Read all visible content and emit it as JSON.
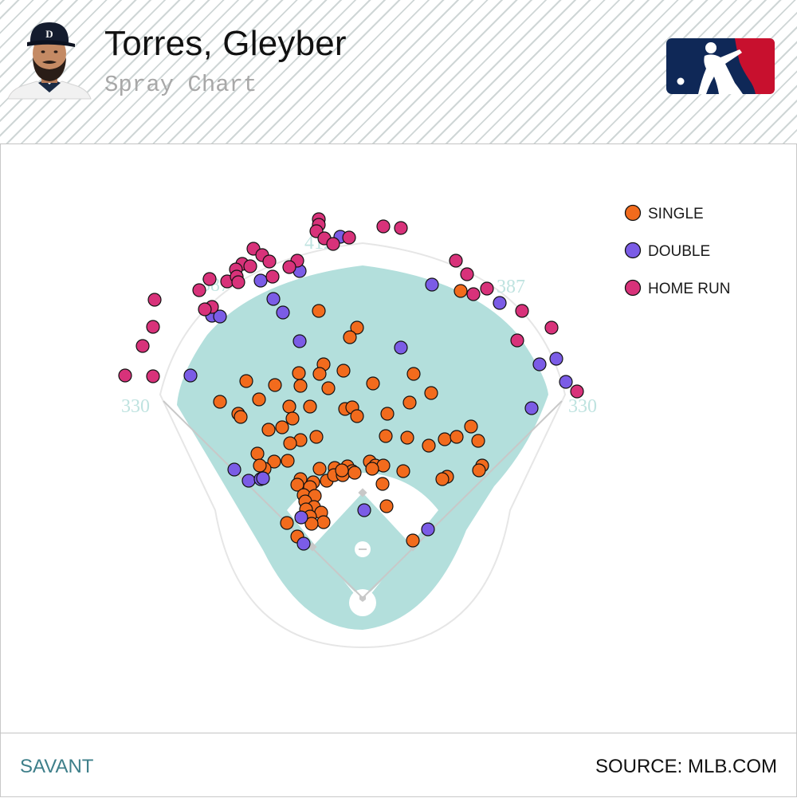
{
  "header": {
    "player_name": "Torres, Gleyber",
    "subtitle": "Spray Chart",
    "logo": "mlb-logo"
  },
  "footer": {
    "brand": "SAVANT",
    "source": "SOURCE: MLB.COM"
  },
  "colors": {
    "single": "#f26b1d",
    "double": "#7b5ce6",
    "home_run": "#d8327a",
    "field": "#b3dfdc",
    "mlb_blue": "#0f2857",
    "mlb_red": "#c8102e"
  },
  "chart_data": {
    "type": "scatter",
    "title": "Spray Chart",
    "xlabel": "",
    "ylabel": "",
    "legend_position": "top-right",
    "fence_distances": [
      "330",
      "387",
      "412",
      "387",
      "330"
    ],
    "legend": [
      {
        "key": "single",
        "label": "SINGLE"
      },
      {
        "key": "double",
        "label": "DOUBLE"
      },
      {
        "key": "home_run",
        "label": "HOME RUN"
      }
    ],
    "series": [
      {
        "key": "single",
        "name": "SINGLE",
        "points": [
          [
            400,
            390
          ],
          [
            448,
            411
          ],
          [
            439,
            423
          ],
          [
            406,
            457
          ],
          [
            375,
            468
          ],
          [
            401,
            469
          ],
          [
            431,
            465
          ],
          [
            519,
            469
          ],
          [
            309,
            478
          ],
          [
            345,
            483
          ],
          [
            377,
            484
          ],
          [
            412,
            487
          ],
          [
            468,
            481
          ],
          [
            541,
            493
          ],
          [
            276,
            504
          ],
          [
            325,
            501
          ],
          [
            363,
            510
          ],
          [
            389,
            510
          ],
          [
            433,
            513
          ],
          [
            442,
            511
          ],
          [
            514,
            505
          ],
          [
            299,
            519
          ],
          [
            302,
            523
          ],
          [
            367,
            525
          ],
          [
            448,
            522
          ],
          [
            486,
            519
          ],
          [
            337,
            539
          ],
          [
            354,
            536
          ],
          [
            591,
            535
          ],
          [
            377,
            552
          ],
          [
            364,
            556
          ],
          [
            397,
            548
          ],
          [
            484,
            547
          ],
          [
            511,
            549
          ],
          [
            538,
            559
          ],
          [
            558,
            551
          ],
          [
            573,
            548
          ],
          [
            600,
            553
          ],
          [
            323,
            569
          ],
          [
            344,
            579
          ],
          [
            361,
            578
          ],
          [
            332,
            588
          ],
          [
            326,
            584
          ],
          [
            401,
            588
          ],
          [
            420,
            587
          ],
          [
            436,
            585
          ],
          [
            442,
            591
          ],
          [
            464,
            579
          ],
          [
            471,
            584
          ],
          [
            481,
            584
          ],
          [
            467,
            588
          ],
          [
            506,
            591
          ],
          [
            605,
            584
          ],
          [
            601,
            590
          ],
          [
            377,
            601
          ],
          [
            393,
            605
          ],
          [
            410,
            603
          ],
          [
            419,
            596
          ],
          [
            430,
            596
          ],
          [
            445,
            593
          ],
          [
            429,
            590
          ],
          [
            480,
            607
          ],
          [
            561,
            598
          ],
          [
            555,
            601
          ],
          [
            373,
            608
          ],
          [
            389,
            611
          ],
          [
            381,
            621
          ],
          [
            395,
            622
          ],
          [
            383,
            629
          ],
          [
            394,
            636
          ],
          [
            384,
            639
          ],
          [
            403,
            643
          ],
          [
            485,
            635
          ],
          [
            389,
            648
          ],
          [
            406,
            655
          ],
          [
            391,
            657
          ],
          [
            360,
            656
          ],
          [
            373,
            673
          ],
          [
            518,
            678
          ],
          [
            578,
            365
          ]
        ]
      },
      {
        "key": "double",
        "name": "DOUBLE",
        "points": [
          [
            427,
            297
          ],
          [
            376,
            340
          ],
          [
            327,
            352
          ],
          [
            542,
            357
          ],
          [
            343,
            375
          ],
          [
            627,
            380
          ],
          [
            355,
            392
          ],
          [
            266,
            396
          ],
          [
            276,
            397
          ],
          [
            376,
            428
          ],
          [
            503,
            436
          ],
          [
            698,
            450
          ],
          [
            677,
            457
          ],
          [
            239,
            471
          ],
          [
            710,
            479
          ],
          [
            667,
            512
          ],
          [
            294,
            589
          ],
          [
            312,
            603
          ],
          [
            327,
            601
          ],
          [
            330,
            600
          ],
          [
            457,
            640
          ],
          [
            378,
            649
          ],
          [
            537,
            664
          ],
          [
            381,
            682
          ]
        ]
      },
      {
        "key": "home_run",
        "name": "HOME RUN",
        "points": [
          [
            400,
            275
          ],
          [
            400,
            282
          ],
          [
            481,
            284
          ],
          [
            503,
            286
          ],
          [
            397,
            290
          ],
          [
            407,
            299
          ],
          [
            418,
            306
          ],
          [
            438,
            298
          ],
          [
            318,
            312
          ],
          [
            329,
            320
          ],
          [
            338,
            328
          ],
          [
            304,
            331
          ],
          [
            314,
            334
          ],
          [
            296,
            338
          ],
          [
            373,
            327
          ],
          [
            363,
            335
          ],
          [
            572,
            327
          ],
          [
            263,
            350
          ],
          [
            285,
            353
          ],
          [
            297,
            347
          ],
          [
            299,
            354
          ],
          [
            342,
            347
          ],
          [
            586,
            344
          ],
          [
            611,
            362
          ],
          [
            250,
            364
          ],
          [
            594,
            369
          ],
          [
            194,
            376
          ],
          [
            266,
            385
          ],
          [
            257,
            388
          ],
          [
            655,
            390
          ],
          [
            192,
            410
          ],
          [
            692,
            411
          ],
          [
            649,
            427
          ],
          [
            179,
            434
          ],
          [
            157,
            471
          ],
          [
            192,
            472
          ],
          [
            724,
            491
          ]
        ]
      }
    ]
  }
}
